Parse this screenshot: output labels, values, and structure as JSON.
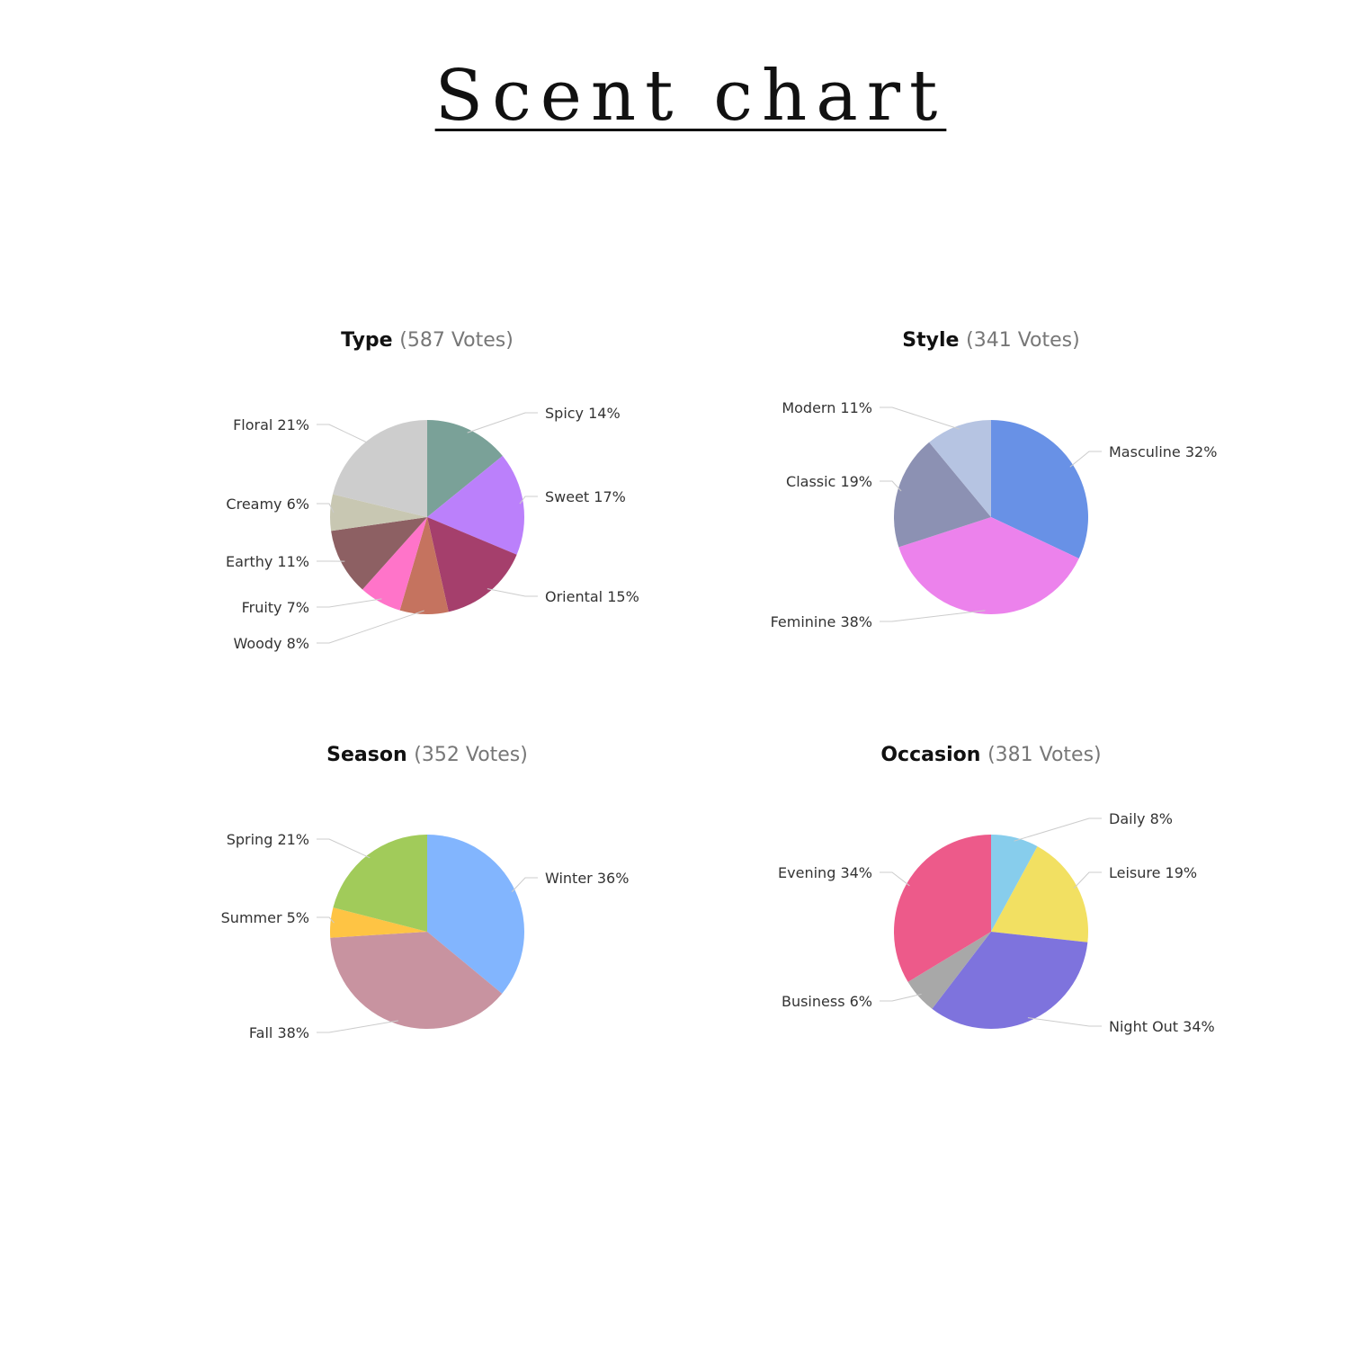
{
  "title": "Scent chart",
  "chart_data": [
    {
      "type": "pie",
      "title": "Type",
      "subtitle": "(587 Votes)",
      "slices": [
        {
          "label": "Spicy",
          "value": 14,
          "color": "#7aa198"
        },
        {
          "label": "Sweet",
          "value": 17,
          "color": "#bb80fb"
        },
        {
          "label": "Oriental",
          "value": 15,
          "color": "#a53f6c"
        },
        {
          "label": "Woody",
          "value": 8,
          "color": "#c5735f"
        },
        {
          "label": "Fruity",
          "value": 7,
          "color": "#ff74c9"
        },
        {
          "label": "Earthy",
          "value": 11,
          "color": "#8d6063"
        },
        {
          "label": "Creamy",
          "value": 6,
          "color": "#c8c7b2"
        },
        {
          "label": "Floral",
          "value": 21,
          "color": "#cdcdcd"
        }
      ]
    },
    {
      "type": "pie",
      "title": "Style",
      "subtitle": "(341 Votes)",
      "slices": [
        {
          "label": "Masculine",
          "value": 32,
          "color": "#6891e6"
        },
        {
          "label": "Feminine",
          "value": 38,
          "color": "#ec82ec"
        },
        {
          "label": "Classic",
          "value": 19,
          "color": "#8c91b3"
        },
        {
          "label": "Modern",
          "value": 11,
          "color": "#b6c4e2"
        }
      ]
    },
    {
      "type": "pie",
      "title": "Season",
      "subtitle": "(352 Votes)",
      "slices": [
        {
          "label": "Winter",
          "value": 36,
          "color": "#82b5fe"
        },
        {
          "label": "Fall",
          "value": 38,
          "color": "#c893a0"
        },
        {
          "label": "Summer",
          "value": 5,
          "color": "#fec444"
        },
        {
          "label": "Spring",
          "value": 21,
          "color": "#a1cb5a"
        }
      ]
    },
    {
      "type": "pie",
      "title": "Occasion",
      "subtitle": "(381 Votes)",
      "slices": [
        {
          "label": "Daily",
          "value": 8,
          "color": "#87cdec"
        },
        {
          "label": "Leisure",
          "value": 19,
          "color": "#f2e062"
        },
        {
          "label": "Night Out",
          "value": 34,
          "color": "#7e73dd"
        },
        {
          "label": "Business",
          "value": 6,
          "color": "#a8a8a8"
        },
        {
          "label": "Evening",
          "value": 34,
          "color": "#ed5a8a"
        }
      ]
    }
  ]
}
